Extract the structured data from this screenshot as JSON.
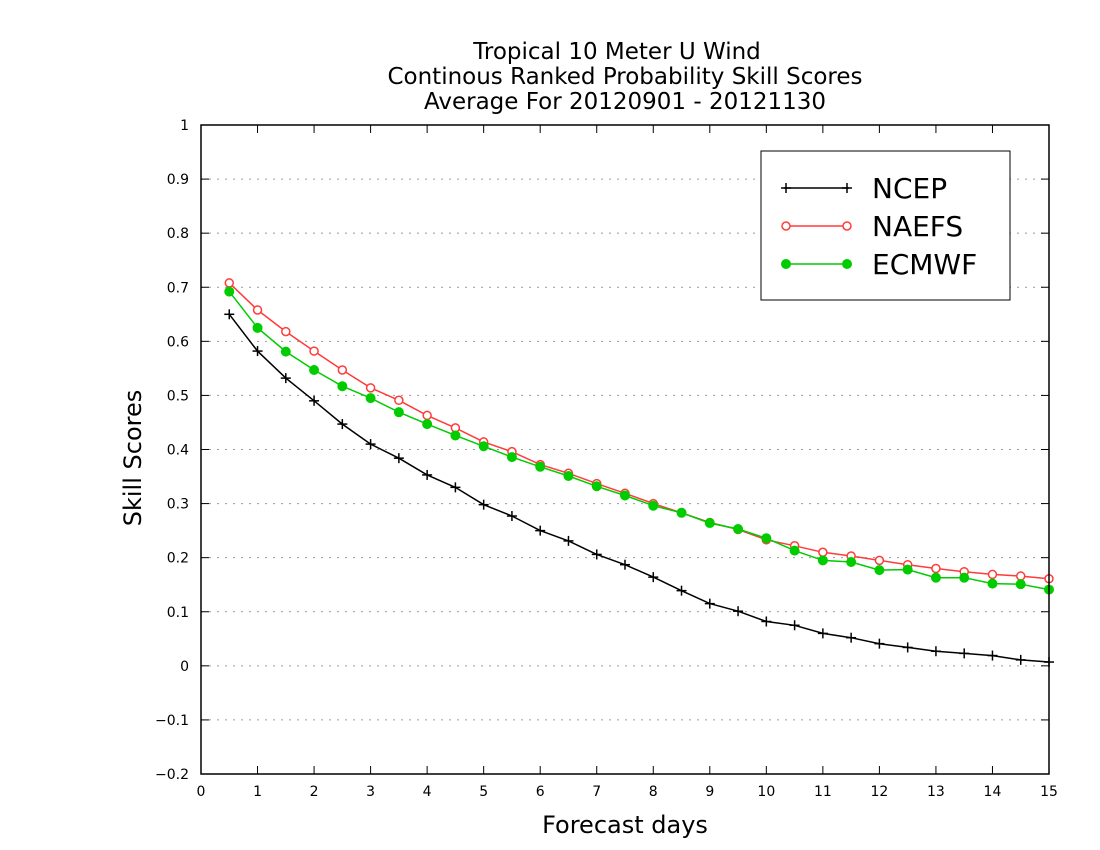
{
  "chart_data": {
    "type": "line",
    "title": [
      "Tropical 10 Meter U Wind",
      "Continous Ranked Probability Skill Scores",
      "Average For 20120901 - 20121130"
    ],
    "xlabel": "Forecast days",
    "ylabel": "Skill Scores",
    "xlim": [
      0,
      15
    ],
    "ylim": [
      -0.2,
      1
    ],
    "xticks": [
      0,
      1,
      2,
      3,
      4,
      5,
      6,
      7,
      8,
      9,
      10,
      11,
      12,
      13,
      14,
      15
    ],
    "yticks": [
      -0.2,
      -0.1,
      0,
      0.1,
      0.2,
      0.3,
      0.4,
      0.5,
      0.6,
      0.7,
      0.8,
      0.9,
      1
    ],
    "ytick_labels": [
      "−0.2",
      "−0.1",
      "0",
      "0.1",
      "0.2",
      "0.3",
      "0.4",
      "0.5",
      "0.6",
      "0.7",
      "0.8",
      "0.9",
      "1"
    ],
    "grid": "horizontal-dotted",
    "legend_position": "top-right",
    "x": [
      0.5,
      1,
      1.5,
      2,
      2.5,
      3,
      3.5,
      4,
      4.5,
      5,
      5.5,
      6,
      6.5,
      7,
      7.5,
      8,
      8.5,
      9,
      9.5,
      10,
      10.5,
      11,
      11.5,
      12,
      12.5,
      13,
      13.5,
      14,
      14.5,
      15
    ],
    "series": [
      {
        "name": "NCEP",
        "color": "#000000",
        "marker": "plus",
        "values": [
          0.65,
          0.582,
          0.532,
          0.49,
          0.447,
          0.41,
          0.384,
          0.353,
          0.33,
          0.298,
          0.277,
          0.25,
          0.231,
          0.206,
          0.187,
          0.164,
          0.139,
          0.115,
          0.101,
          0.082,
          0.075,
          0.06,
          0.052,
          0.041,
          0.034,
          0.027,
          0.023,
          0.019,
          0.011,
          0.007
        ]
      },
      {
        "name": "NAEFS",
        "color": "#ff3b3b",
        "marker": "open-circle",
        "values": [
          0.708,
          0.658,
          0.618,
          0.582,
          0.547,
          0.514,
          0.491,
          0.463,
          0.44,
          0.414,
          0.396,
          0.372,
          0.356,
          0.337,
          0.319,
          0.3,
          0.283,
          0.265,
          0.252,
          0.233,
          0.222,
          0.21,
          0.203,
          0.195,
          0.187,
          0.18,
          0.174,
          0.169,
          0.166,
          0.161
        ]
      },
      {
        "name": "ECMWF",
        "color": "#00cc00",
        "marker": "filled-circle",
        "values": [
          0.692,
          0.625,
          0.581,
          0.547,
          0.517,
          0.495,
          0.469,
          0.447,
          0.426,
          0.406,
          0.386,
          0.368,
          0.351,
          0.332,
          0.315,
          0.296,
          0.283,
          0.264,
          0.253,
          0.236,
          0.213,
          0.195,
          0.192,
          0.177,
          0.178,
          0.163,
          0.163,
          0.152,
          0.151,
          0.141
        ]
      }
    ]
  }
}
